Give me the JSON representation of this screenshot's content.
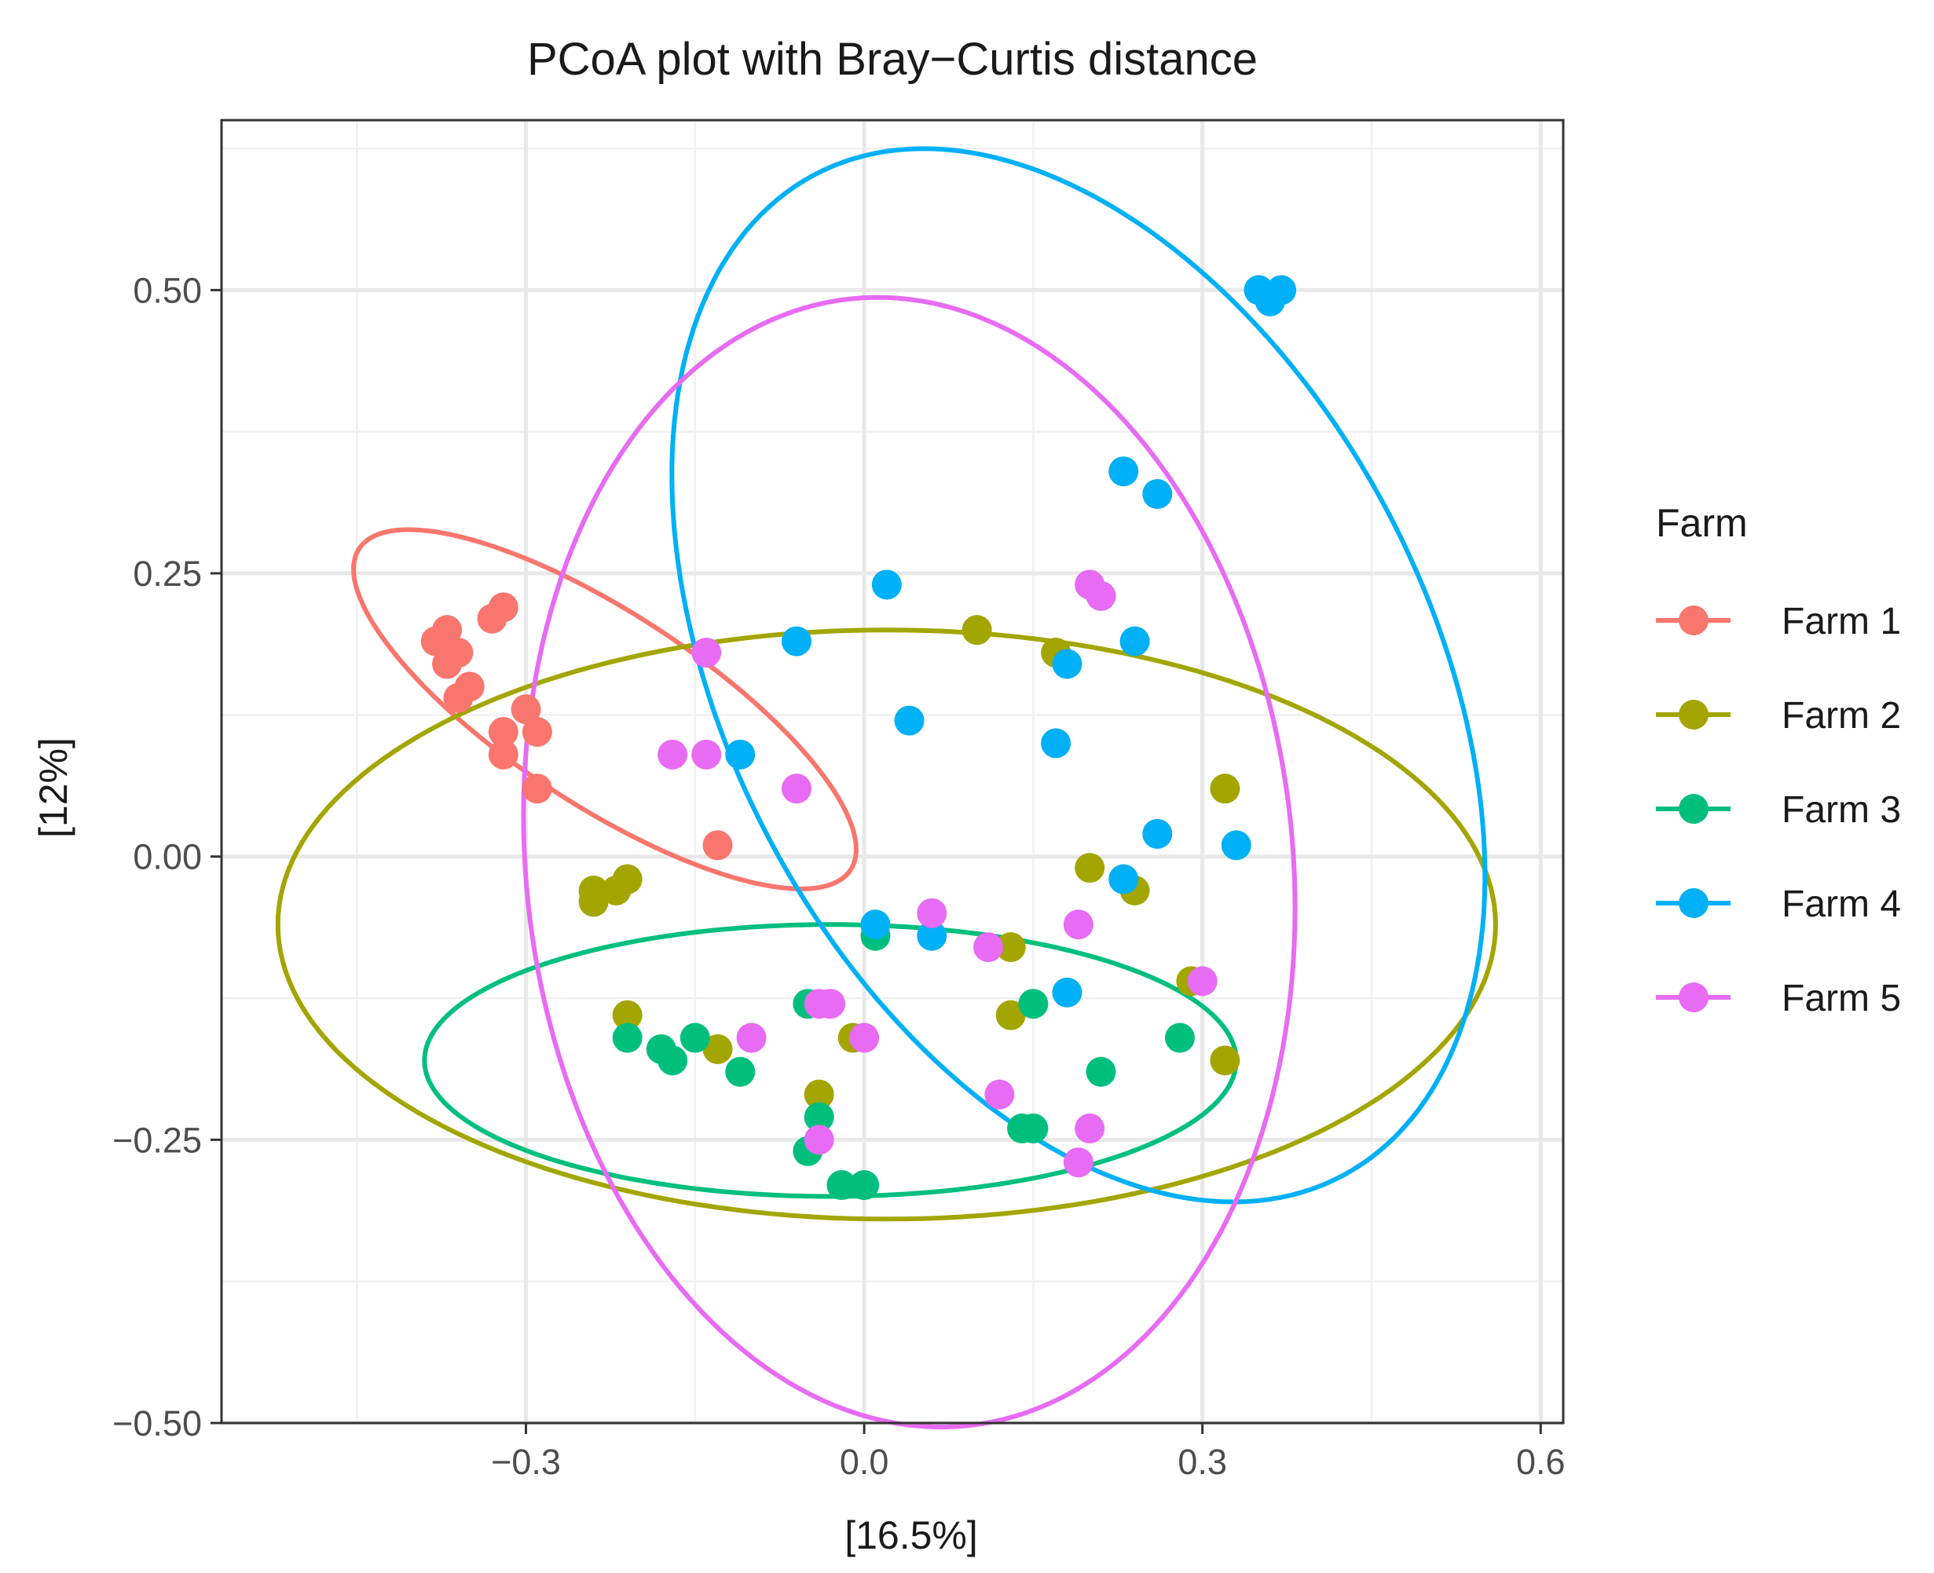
{
  "chart_data": {
    "type": "scatter",
    "title": "PCoA plot with Bray−Curtis distance",
    "xlabel": "[16.5%]",
    "ylabel": "[12%]",
    "xlim": [
      -0.57,
      0.62
    ],
    "ylim": [
      -0.5,
      0.65
    ],
    "x_ticks": [
      -0.3,
      0.0,
      0.3,
      0.6
    ],
    "x_tick_labels": [
      "−0.3",
      "0.0",
      "0.3",
      "0.6"
    ],
    "y_ticks": [
      -0.5,
      -0.25,
      0.0,
      0.25,
      0.5
    ],
    "y_tick_labels": [
      "−0.50",
      "−0.25",
      "0.00",
      "0.25",
      "0.50"
    ],
    "x_minor_ticks": [
      -0.45,
      -0.15,
      0.15,
      0.45
    ],
    "y_minor_ticks": [
      -0.375,
      -0.125,
      0.125,
      0.375,
      0.625
    ],
    "grid": true,
    "legend": {
      "title": "Farm",
      "position": "right"
    },
    "series": [
      {
        "name": "Farm 1",
        "color": "#F8766D",
        "points": [
          [
            -0.38,
            0.19
          ],
          [
            -0.37,
            0.2
          ],
          [
            -0.36,
            0.18
          ],
          [
            -0.37,
            0.17
          ],
          [
            -0.33,
            0.21
          ],
          [
            -0.32,
            0.22
          ],
          [
            -0.35,
            0.15
          ],
          [
            -0.36,
            0.14
          ],
          [
            -0.3,
            0.13
          ],
          [
            -0.32,
            0.11
          ],
          [
            -0.29,
            0.11
          ],
          [
            -0.32,
            0.09
          ],
          [
            -0.29,
            0.06
          ],
          [
            -0.13,
            0.01
          ]
        ],
        "ellipse": {
          "cx": -0.23,
          "cy": 0.13,
          "rx": 0.26,
          "ry": 0.085,
          "angle_deg": -33
        }
      },
      {
        "name": "Farm 2",
        "color": "#A3A500",
        "points": [
          [
            0.1,
            0.2
          ],
          [
            0.17,
            0.18
          ],
          [
            0.32,
            0.06
          ],
          [
            0.2,
            -0.01
          ],
          [
            0.24,
            -0.03
          ],
          [
            -0.24,
            -0.03
          ],
          [
            -0.24,
            -0.04
          ],
          [
            -0.22,
            -0.03
          ],
          [
            -0.21,
            -0.02
          ],
          [
            0.13,
            -0.08
          ],
          [
            0.29,
            -0.11
          ],
          [
            -0.21,
            -0.14
          ],
          [
            0.13,
            -0.14
          ],
          [
            -0.13,
            -0.17
          ],
          [
            -0.01,
            -0.16
          ],
          [
            0.32,
            -0.18
          ],
          [
            -0.04,
            -0.21
          ]
        ],
        "ellipse": {
          "cx": 0.02,
          "cy": -0.06,
          "rx": 0.54,
          "ry": 0.26,
          "angle_deg": 0
        }
      },
      {
        "name": "Farm 3",
        "color": "#00BF7D",
        "points": [
          [
            0.01,
            -0.07
          ],
          [
            -0.05,
            -0.13
          ],
          [
            0.15,
            -0.13
          ],
          [
            -0.21,
            -0.16
          ],
          [
            -0.15,
            -0.16
          ],
          [
            -0.18,
            -0.17
          ],
          [
            -0.17,
            -0.18
          ],
          [
            -0.11,
            -0.19
          ],
          [
            0.28,
            -0.16
          ],
          [
            0.21,
            -0.19
          ],
          [
            -0.04,
            -0.23
          ],
          [
            0.14,
            -0.24
          ],
          [
            0.15,
            -0.24
          ],
          [
            -0.05,
            -0.26
          ],
          [
            -0.02,
            -0.29
          ],
          [
            0.0,
            -0.29
          ]
        ],
        "ellipse": {
          "cx": -0.03,
          "cy": -0.18,
          "rx": 0.36,
          "ry": 0.12,
          "angle_deg": 0
        }
      },
      {
        "name": "Farm 4",
        "color": "#00B0F6",
        "points": [
          [
            0.35,
            0.5
          ],
          [
            0.36,
            0.49
          ],
          [
            0.37,
            0.5
          ],
          [
            0.23,
            0.34
          ],
          [
            0.26,
            0.32
          ],
          [
            0.02,
            0.24
          ],
          [
            -0.06,
            0.19
          ],
          [
            0.24,
            0.19
          ],
          [
            0.18,
            0.17
          ],
          [
            0.04,
            0.12
          ],
          [
            -0.11,
            0.09
          ],
          [
            0.17,
            0.1
          ],
          [
            0.26,
            0.02
          ],
          [
            0.33,
            0.01
          ],
          [
            0.23,
            -0.02
          ],
          [
            0.01,
            -0.06
          ],
          [
            0.06,
            -0.07
          ],
          [
            0.18,
            -0.12
          ]
        ],
        "ellipse": {
          "cx": 0.19,
          "cy": 0.16,
          "rx": 0.5,
          "ry": 0.31,
          "angle_deg": -62
        }
      },
      {
        "name": "Farm 5",
        "color": "#E76BF3",
        "points": [
          [
            0.2,
            0.24
          ],
          [
            0.21,
            0.23
          ],
          [
            -0.14,
            0.18
          ],
          [
            -0.17,
            0.09
          ],
          [
            -0.14,
            0.09
          ],
          [
            -0.06,
            0.06
          ],
          [
            0.06,
            -0.05
          ],
          [
            0.19,
            -0.06
          ],
          [
            0.11,
            -0.08
          ],
          [
            0.3,
            -0.11
          ],
          [
            -0.04,
            -0.13
          ],
          [
            -0.03,
            -0.13
          ],
          [
            -0.1,
            -0.16
          ],
          [
            0.0,
            -0.16
          ],
          [
            0.12,
            -0.21
          ],
          [
            0.2,
            -0.24
          ],
          [
            -0.04,
            -0.25
          ],
          [
            0.19,
            -0.27
          ]
        ],
        "ellipse": {
          "cx": 0.04,
          "cy": -0.005,
          "rx": 0.5,
          "ry": 0.34,
          "angle_deg": -84
        }
      }
    ]
  }
}
